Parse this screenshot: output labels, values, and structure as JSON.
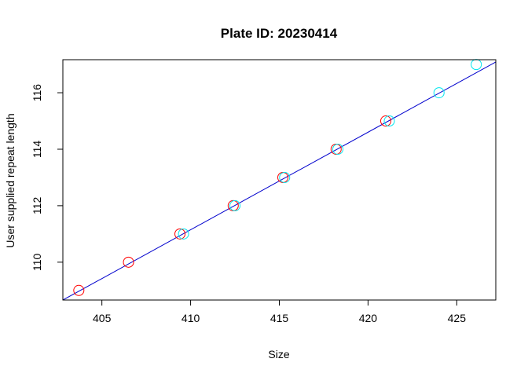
{
  "chart_data": {
    "type": "scatter",
    "title": "Plate ID: 20230414",
    "xlabel": "Size",
    "ylabel": "User supplied repeat length",
    "xlim": [
      402.8,
      427.2
    ],
    "ylim": [
      108.66,
      117.17
    ],
    "x_ticks": [
      405,
      410,
      415,
      420,
      425
    ],
    "y_ticks": [
      110,
      112,
      114,
      116
    ],
    "grid": false,
    "legend": "none",
    "series": [
      {
        "color": "#ff0000",
        "marker": "open-circle",
        "points": [
          {
            "x": 403.7,
            "y": 109
          },
          {
            "x": 406.5,
            "y": 110
          },
          {
            "x": 409.4,
            "y": 111
          },
          {
            "x": 412.4,
            "y": 112
          },
          {
            "x": 415.2,
            "y": 113
          },
          {
            "x": 418.2,
            "y": 114
          },
          {
            "x": 421.0,
            "y": 115
          }
        ]
      },
      {
        "color": "#00e5ee",
        "marker": "open-circle",
        "points": [
          {
            "x": 409.6,
            "y": 111
          },
          {
            "x": 412.5,
            "y": 112
          },
          {
            "x": 415.3,
            "y": 113
          },
          {
            "x": 418.3,
            "y": 114
          },
          {
            "x": 421.2,
            "y": 115
          },
          {
            "x": 424.0,
            "y": 116
          },
          {
            "x": 426.1,
            "y": 117
          }
        ]
      }
    ],
    "fit_line": {
      "color": "#0000cd",
      "points": [
        {
          "x": 402.8,
          "y": 108.66
        },
        {
          "x": 427.2,
          "y": 117.09
        }
      ]
    }
  }
}
